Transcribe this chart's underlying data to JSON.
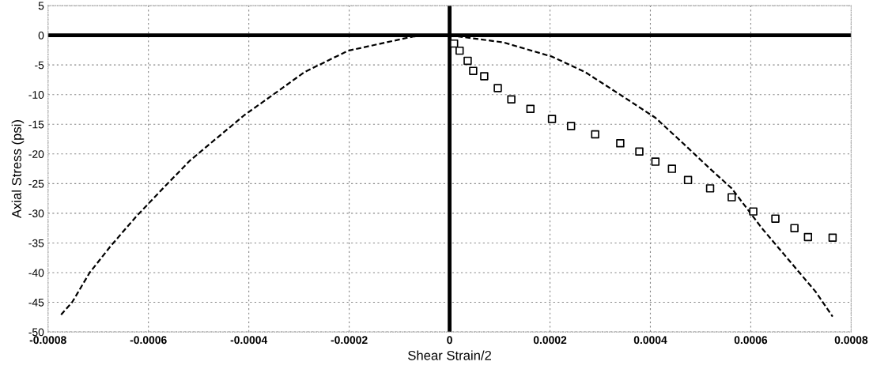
{
  "chart_data": {
    "type": "line",
    "xlabel": "Shear Strain/2",
    "ylabel": "Axial Stress (psi)",
    "xlim": [
      -0.0008,
      0.0008
    ],
    "ylim": [
      -50,
      5
    ],
    "xticks": [
      -0.0008,
      -0.0006,
      -0.0004,
      -0.0002,
      0,
      0.0002,
      0.0004,
      0.0006,
      0.0008
    ],
    "yticks": [
      -50,
      -45,
      -40,
      -35,
      -30,
      -25,
      -20,
      -15,
      -10,
      -5,
      0,
      5
    ],
    "grid": true,
    "legend": false,
    "series": [
      {
        "type": "line",
        "color": "#000000",
        "line_style": "dashed",
        "marker": "none",
        "x": [
          -0.000774,
          -0.000752,
          -0.000717,
          -0.000674,
          -0.000625,
          -0.000571,
          -0.000517,
          -0.000462,
          -0.000408,
          -0.000348,
          -0.000289,
          -0.000202,
          -7.2e-05,
          0,
          0.000107,
          0.000204,
          0.00027,
          0.000345,
          0.00041,
          0.000465,
          0.000519,
          0.000562,
          0.000622,
          0.000692,
          0.00073,
          0.000763
        ],
        "values": [
          -47.1,
          -45.0,
          -40.0,
          -35.4,
          -30.6,
          -25.8,
          -21.1,
          -17.2,
          -13.4,
          -9.8,
          -6.2,
          -2.6,
          -0.2,
          0,
          -1.2,
          -3.6,
          -6.2,
          -10.3,
          -13.9,
          -18.2,
          -22.5,
          -25.8,
          -32.5,
          -39.5,
          -43.3,
          -47.4
        ]
      },
      {
        "type": "scatter",
        "color": "#000000",
        "marker": "square",
        "x": [
          9e-06,
          2e-05,
          3.6e-05,
          4.7e-05,
          6.9e-05,
          9.6e-05,
          0.000123,
          0.000161,
          0.000204,
          0.000242,
          0.00029,
          0.00034,
          0.000378,
          0.00041,
          0.000443,
          0.000475,
          0.000519,
          0.000562,
          0.000605,
          0.000649,
          0.000687,
          0.000714,
          0.000763
        ],
        "values": [
          -1.4,
          -2.6,
          -4.3,
          -6.0,
          -6.9,
          -8.9,
          -10.8,
          -12.4,
          -14.1,
          -15.3,
          -16.7,
          -18.2,
          -19.6,
          -21.3,
          -22.5,
          -24.4,
          -25.8,
          -27.3,
          -29.7,
          -30.9,
          -32.5,
          -34.0,
          -34.1
        ]
      }
    ]
  }
}
